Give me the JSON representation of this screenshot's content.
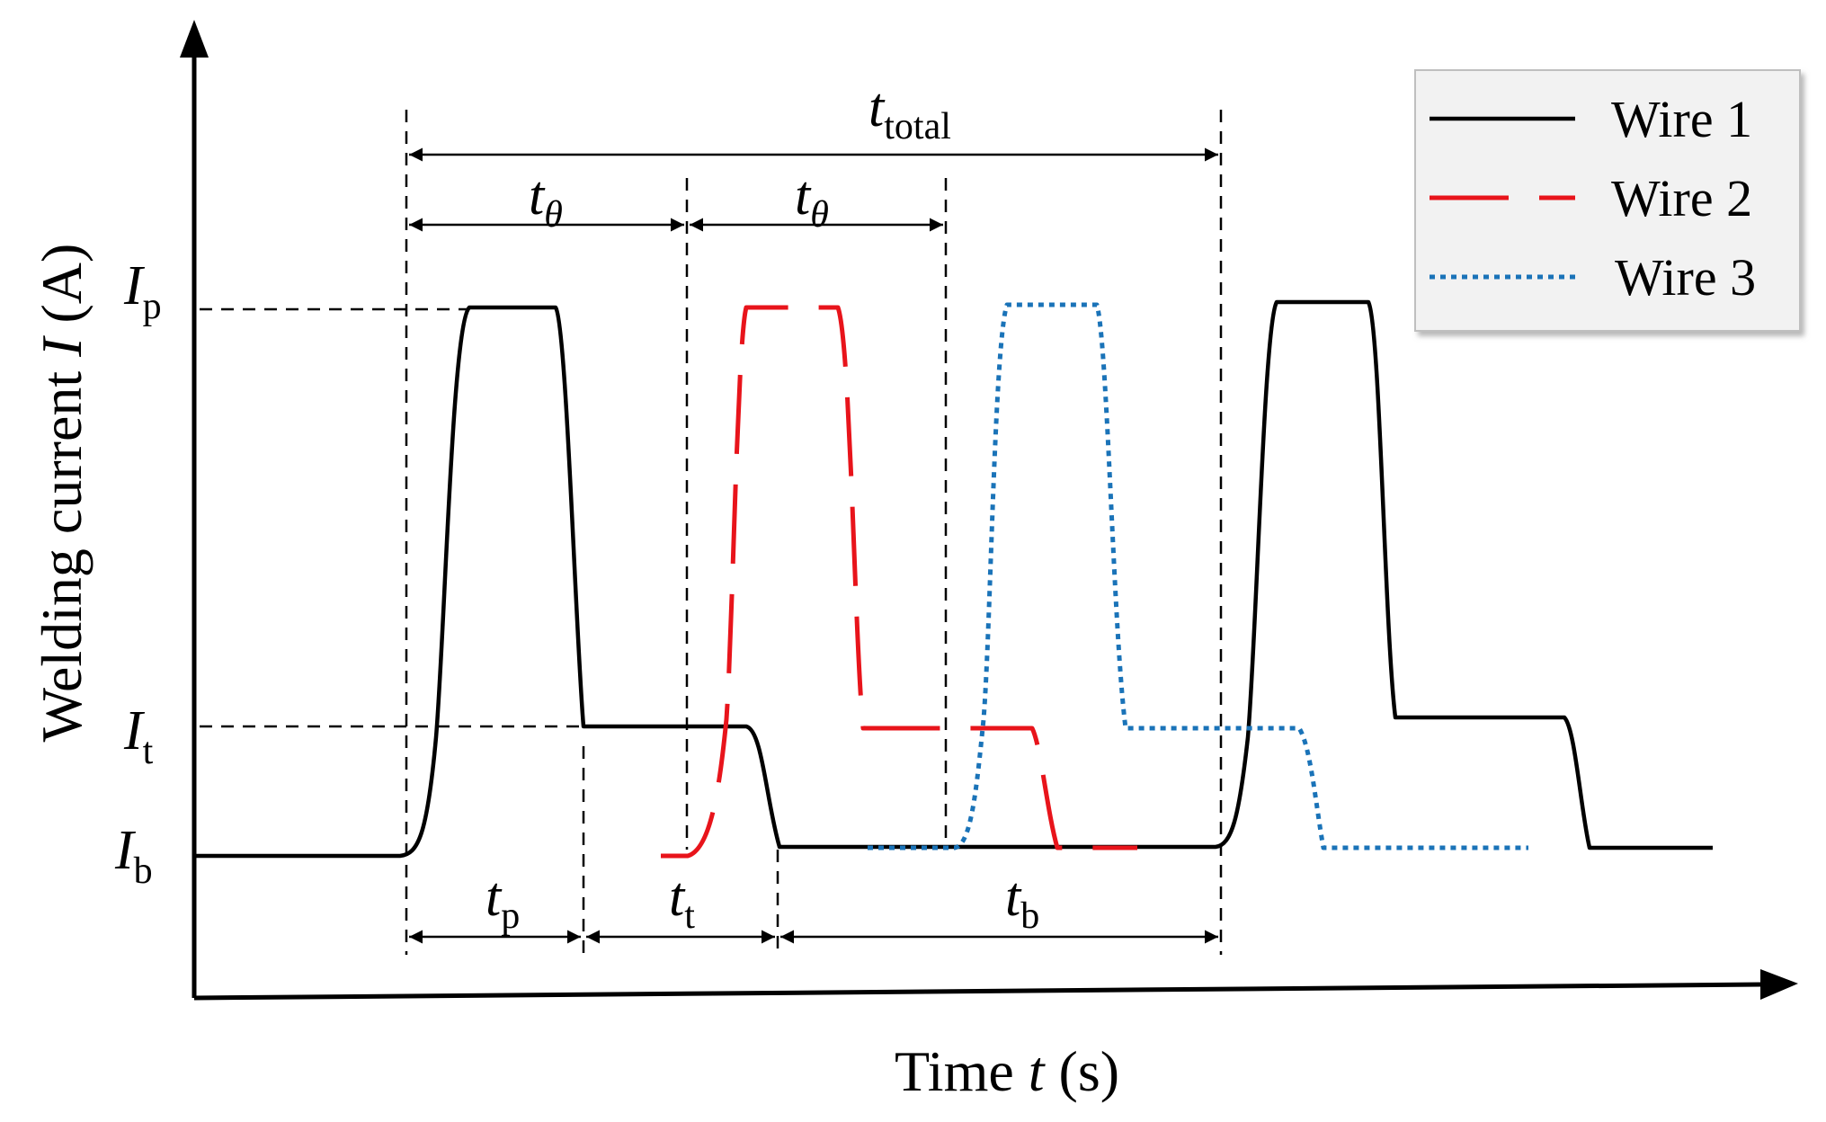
{
  "axes": {
    "y_title_prefix": "Welding current ",
    "y_title_var": "I",
    "y_title_suffix": " (A)",
    "x_title_prefix": "Time ",
    "x_title_var": "t",
    "x_title_suffix": " (s)"
  },
  "levels": {
    "peak": {
      "main": "I",
      "sub": "p"
    },
    "transition": {
      "main": "I",
      "sub": "t"
    },
    "base": {
      "main": "I",
      "sub": "b"
    }
  },
  "intervals": {
    "total": {
      "main": "t",
      "sub": "total"
    },
    "theta_1": {
      "main": "t",
      "sub": "θ"
    },
    "theta_2": {
      "main": "t",
      "sub": "θ"
    },
    "peak_time": {
      "main": "t",
      "sub": "p"
    },
    "transition_time": {
      "main": "t",
      "sub": "t"
    },
    "base_time": {
      "main": "t",
      "sub": "b"
    }
  },
  "legend": {
    "items": [
      {
        "label": "Wire 1",
        "color": "#000000",
        "style": "solid"
      },
      {
        "label": "Wire 2",
        "color": "#e8141b",
        "style": "long-dash"
      },
      {
        "label": "Wire 3",
        "color": "#1a73b8",
        "style": "dotted"
      }
    ]
  }
}
